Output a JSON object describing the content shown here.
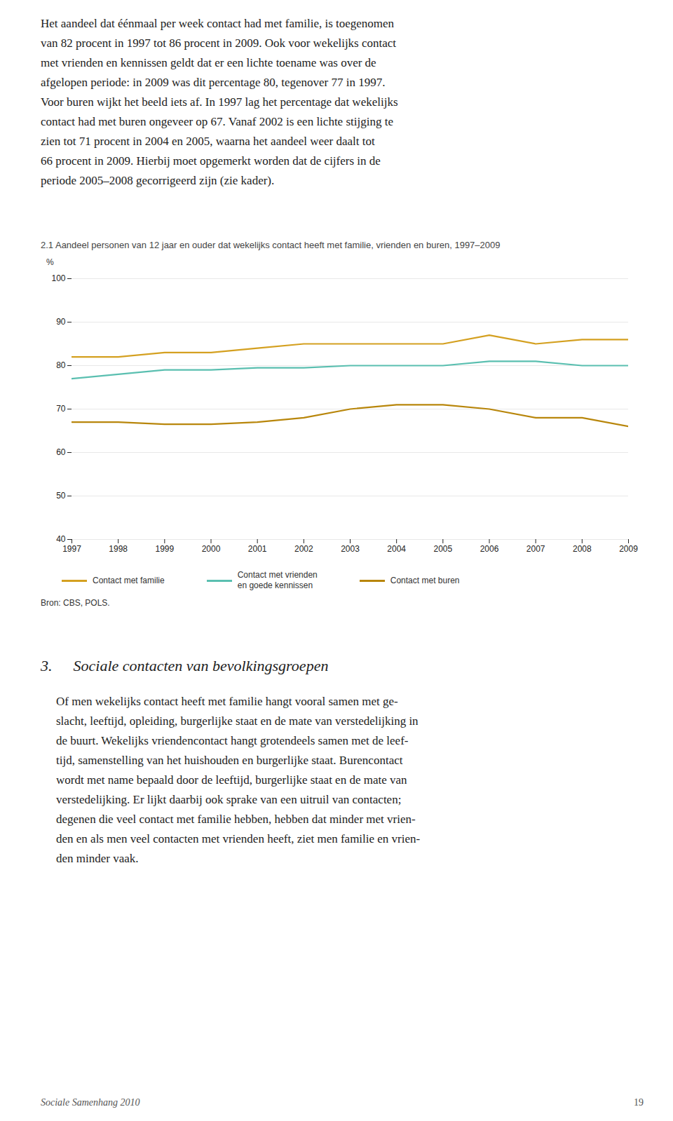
{
  "chart_data": {
    "type": "line",
    "title": "2.1  Aandeel personen van 12 jaar en ouder dat wekelijks contact heeft met familie, vrienden en buren, 1997–2009",
    "ylabel": "%",
    "x": [
      1997,
      1998,
      1999,
      2000,
      2001,
      2002,
      2003,
      2004,
      2005,
      2006,
      2007,
      2008,
      2009
    ],
    "series": [
      {
        "name": "Contact met familie",
        "color": "#D4A020",
        "values": [
          82,
          82,
          83,
          83,
          84,
          85,
          85,
          85,
          85,
          87,
          85,
          86,
          86
        ]
      },
      {
        "name": "Contact met vrienden\nen goede kennissen",
        "color": "#5ABFB0",
        "values": [
          77,
          78,
          79,
          79,
          79.5,
          79.5,
          80,
          80,
          80,
          81,
          81,
          80,
          80
        ]
      },
      {
        "name": "Contact met buren",
        "color": "#B8860B",
        "values": [
          67,
          67,
          66.5,
          66.5,
          67,
          68,
          70,
          71,
          71,
          70,
          68,
          68,
          66
        ]
      }
    ],
    "xlim": [
      1997,
      2009
    ],
    "xticks": [
      1997,
      1998,
      1999,
      2000,
      2001,
      2002,
      2003,
      2004,
      2005,
      2006,
      2007,
      2008,
      2009
    ],
    "ylim": [
      40,
      100
    ],
    "yticks": [
      40,
      50,
      60,
      70,
      80,
      90,
      100
    ],
    "grid": true,
    "legend": "bottom",
    "source": "Bron: CBS, POLS."
  },
  "page": {
    "intro": [
      "Het aandeel dat éénmaal per week contact had met familie, is toegenomen",
      "van 82 procent in 1997 tot 86 procent in 2009. Ook voor wekelijks contact",
      "met vrienden en kennissen geldt dat er een lichte toename was over de",
      "afgelopen periode: in 2009 was dit percentage 80, tegenover 77 in 1997.",
      "Voor buren wijkt het beeld iets af. In 1997 lag het percentage dat wekelijks",
      "contact had met buren ongeveer op 67. Vanaf 2002 is een lichte stijging te",
      "zien tot 71 procent in 2004 en 2005, waarna het aandeel weer daalt tot",
      "66 procent in 2009. Hierbij moet opgemerkt worden dat de cijfers in de",
      "periode 2005–2008 gecorrigeerd zijn (zie kader)."
    ],
    "section_number": "3.",
    "heading": "Sociale contacten van bevolkingsgroepen",
    "body": [
      "Of men wekelijks contact heeft met familie hangt vooral samen met ge-",
      "slacht, leeftijd, opleiding, burgerlijke staat en de mate van verstedelijking in",
      "de buurt. Wekelijks vriendencontact hangt grotendeels samen met de leef-",
      "tijd, samenstelling van het huishouden en burgerlijke staat. Burencontact",
      "wordt met name bepaald door de leeftijd, burgerlijke staat en de mate van",
      "verstedelijking. Er lijkt daarbij ook sprake van een uitruil van contacten;",
      "degenen die veel contact met familie hebben, hebben dat minder met vrien-",
      "den en als men veel contacten met vrienden heeft, ziet men familie en vrien-",
      "den minder vaak."
    ],
    "footer": "Sociale Samenhang 2010",
    "page_number": "19"
  }
}
